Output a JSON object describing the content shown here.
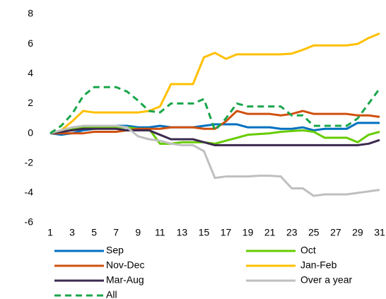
{
  "chart_data": {
    "type": "line",
    "x": [
      1,
      2,
      3,
      4,
      5,
      6,
      7,
      8,
      9,
      10,
      11,
      12,
      13,
      14,
      15,
      16,
      17,
      18,
      19,
      20,
      21,
      22,
      23,
      24,
      25,
      26,
      27,
      28,
      29,
      30,
      31
    ],
    "xlim": [
      1,
      31
    ],
    "xticks": [
      1,
      3,
      5,
      7,
      9,
      11,
      13,
      15,
      17,
      19,
      21,
      23,
      25,
      27,
      29,
      31
    ],
    "ylim": [
      -6,
      8
    ],
    "yticks": [
      -6,
      -4,
      -2,
      0,
      2,
      4,
      6,
      8
    ],
    "series": [
      {
        "name": "Sep",
        "color": "#0070c0",
        "dashed": false,
        "values": [
          0,
          -0.1,
          0,
          0.2,
          0.3,
          0.4,
          0.5,
          0.5,
          0.4,
          0.4,
          0.5,
          0.4,
          0.4,
          0.4,
          0.5,
          0.6,
          0.6,
          0.6,
          0.4,
          0.4,
          0.4,
          0.3,
          0.3,
          0.4,
          0.2,
          0.3,
          0.3,
          0.3,
          0.7,
          0.7,
          0.7
        ]
      },
      {
        "name": "Oct",
        "color": "#66cc00",
        "dashed": false,
        "values": [
          0,
          0.1,
          0.3,
          0.4,
          0.4,
          0.4,
          0.4,
          0.4,
          0.3,
          0.3,
          -0.7,
          -0.7,
          -0.6,
          -0.6,
          -0.6,
          -0.7,
          -0.5,
          -0.3,
          -0.1,
          -0.05,
          0,
          0.1,
          0.15,
          0.2,
          0.1,
          -0.3,
          -0.3,
          -0.3,
          -0.6,
          -0.1,
          0.1
        ]
      },
      {
        "name": "Nov-Dec",
        "color": "#d0500f",
        "dashed": false,
        "values": [
          0,
          0,
          0,
          0,
          0.1,
          0.1,
          0.1,
          0.2,
          0.3,
          0.3,
          0.3,
          0.4,
          0.4,
          0.4,
          0.3,
          0.3,
          0.8,
          1.5,
          1.3,
          1.3,
          1.3,
          1.2,
          1.3,
          1.5,
          1.3,
          1.3,
          1.3,
          1.3,
          1.2,
          1.2,
          1.1
        ]
      },
      {
        "name": "Jan-Feb",
        "color": "#ffc000",
        "dashed": false,
        "values": [
          0,
          0.2,
          0.8,
          1.5,
          1.4,
          1.4,
          1.4,
          1.4,
          1.4,
          1.5,
          1.8,
          3.3,
          3.3,
          3.3,
          5.1,
          5.4,
          5.0,
          5.3,
          5.3,
          5.3,
          5.3,
          5.3,
          5.35,
          5.6,
          5.9,
          5.9,
          5.9,
          5.9,
          6.0,
          6.4,
          6.7
        ]
      },
      {
        "name": "Mar-Aug",
        "color": "#3b2a4e",
        "dashed": false,
        "values": [
          0,
          0.1,
          0.2,
          0.3,
          0.3,
          0.3,
          0.3,
          0.2,
          0.2,
          0.2,
          -0.1,
          -0.4,
          -0.4,
          -0.4,
          -0.6,
          -0.8,
          -0.8,
          -0.8,
          -0.8,
          -0.8,
          -0.8,
          -0.8,
          -0.8,
          -0.8,
          -0.8,
          -0.8,
          -0.8,
          -0.8,
          -0.8,
          -0.7,
          -0.45
        ]
      },
      {
        "name": "Over a year",
        "color": "#bfbfbf",
        "dashed": false,
        "values": [
          0,
          0.2,
          0.4,
          0.5,
          0.5,
          0.5,
          0.5,
          0.4,
          -0.2,
          -0.4,
          -0.5,
          -0.7,
          -0.8,
          -0.8,
          -1.2,
          -3.0,
          -2.9,
          -2.9,
          -2.9,
          -2.85,
          -2.85,
          -2.9,
          -3.7,
          -3.7,
          -4.2,
          -4.1,
          -4.1,
          -4.1,
          -4.0,
          -3.9,
          -3.8
        ]
      },
      {
        "name": "All",
        "color": "#1aa64a",
        "dashed": true,
        "values": [
          0,
          0.5,
          1.3,
          2.5,
          3.1,
          3.1,
          3.1,
          2.8,
          2.2,
          1.5,
          1.4,
          2.0,
          2.0,
          2.0,
          2.3,
          0.2,
          1.0,
          2.0,
          1.8,
          1.8,
          1.8,
          1.8,
          1.2,
          1.2,
          0.5,
          0.5,
          0.5,
          0.5,
          1.0,
          2.0,
          3.0
        ]
      }
    ]
  }
}
